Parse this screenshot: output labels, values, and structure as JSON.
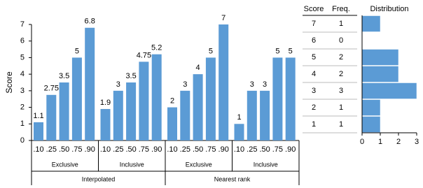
{
  "chart_data": [
    {
      "type": "bar",
      "y_label": "Score",
      "ylim": [
        0,
        7
      ],
      "yticks": [
        0,
        1,
        2,
        3,
        4,
        5,
        6,
        7
      ],
      "color": "#5b9bd5",
      "groups": [
        {
          "name": "Interpolated",
          "subgroups": [
            {
              "name": "Exclusive",
              "categories": [
                ".10",
                ".25",
                ".50",
                ".75",
                ".90"
              ],
              "values": [
                1.1,
                2.75,
                3.5,
                5,
                6.8
              ]
            },
            {
              "name": "Inclusive",
              "categories": [
                ".10",
                ".25",
                ".50",
                ".75",
                ".90"
              ],
              "values": [
                1.9,
                3,
                3.5,
                4.75,
                5.2
              ]
            }
          ]
        },
        {
          "name": "Nearest rank",
          "subgroups": [
            {
              "name": "Exclusive",
              "categories": [
                ".10",
                ".25",
                ".50",
                ".75",
                ".90"
              ],
              "values": [
                2,
                3,
                4,
                5,
                7
              ]
            },
            {
              "name": "Inclusive",
              "categories": [
                ".10",
                ".25",
                ".50",
                ".75",
                ".90"
              ],
              "values": [
                1,
                3,
                3,
                5,
                5
              ]
            }
          ]
        }
      ]
    },
    {
      "type": "frequency-table",
      "columns": [
        "Score",
        "Freq.",
        "Distribution"
      ],
      "scores": [
        7,
        6,
        5,
        4,
        3,
        2,
        1
      ],
      "freq": [
        1,
        0,
        2,
        2,
        3,
        1,
        1
      ],
      "xlim": [
        0,
        3
      ],
      "xticks": [
        0,
        1,
        2,
        3
      ],
      "color": "#5b9bd5"
    }
  ]
}
